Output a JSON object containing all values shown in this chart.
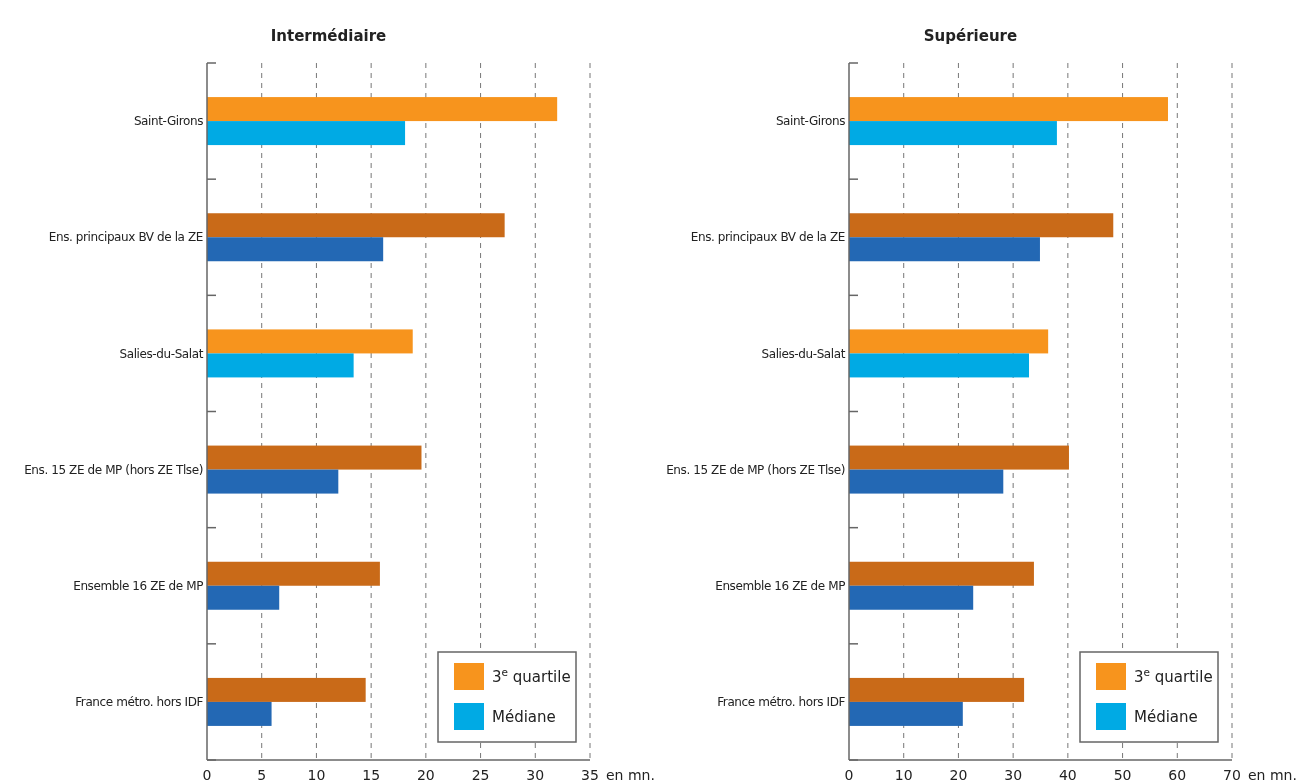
{
  "chart_data": [
    {
      "type": "bar",
      "orientation": "horizontal",
      "title": "Intermédiaire",
      "categories": [
        "Saint-Girons",
        "Ens. principaux BV de la ZE",
        "Salies-du-Salat",
        "Ens. 15 ZE de MP (hors ZE Tlse)",
        "Ensemble 16 ZE de MP",
        "France métro. hors IDF"
      ],
      "series": [
        {
          "name": "3$^{e}$ quartile",
          "color": "#f7941d",
          "colors": [
            "#f7941d",
            "#c96a18",
            "#f7941d",
            "#c96a18",
            "#c96a18",
            "#c96a18"
          ],
          "values": [
            32.0,
            27.2,
            18.8,
            19.6,
            15.8,
            14.5
          ]
        },
        {
          "name": "Médiane",
          "color": "#00aae4",
          "colors": [
            "#00aae4",
            "#2368b4",
            "#00aae4",
            "#2368b4",
            "#2368b4",
            "#2368b4"
          ],
          "values": [
            18.1,
            16.1,
            13.4,
            12.0,
            6.6,
            5.9
          ]
        }
      ],
      "xlim": [
        0,
        35
      ],
      "xticks": [
        0,
        5,
        10,
        15,
        20,
        25,
        30,
        35
      ],
      "xlabel": "en mn.",
      "grid": "x",
      "line_style": "dashed",
      "legend": "bottom right"
    },
    {
      "type": "bar",
      "orientation": "horizontal",
      "title": "Supérieure",
      "categories": [
        "Saint-Girons",
        "Ens. principaux BV de la ZE",
        "Salies-du-Salat",
        "Ens. 15 ZE de MP (hors ZE Tlse)",
        "Ensemble 16 ZE de MP",
        "France métro. hors IDF"
      ],
      "series": [
        {
          "name": "3$^{e}$ quartile",
          "color": "#f7941d",
          "colors": [
            "#f7941d",
            "#c96a18",
            "#f7941d",
            "#c96a18",
            "#c96a18",
            "#c96a18"
          ],
          "values": [
            58.3,
            48.3,
            36.4,
            40.2,
            33.8,
            32.0
          ]
        },
        {
          "name": "Médiane",
          "color": "#00aae4",
          "colors": [
            "#00aae4",
            "#2368b4",
            "#00aae4",
            "#2368b4",
            "#2368b4",
            "#2368b4"
          ],
          "values": [
            38.0,
            34.9,
            32.9,
            28.2,
            22.7,
            20.8
          ]
        }
      ],
      "xlim": [
        0,
        70
      ],
      "xticks": [
        0,
        10,
        20,
        30,
        40,
        50,
        60,
        70
      ],
      "xlabel": "en mn.",
      "grid": "x",
      "line_style": "dashed",
      "legend": "bottom right"
    }
  ]
}
